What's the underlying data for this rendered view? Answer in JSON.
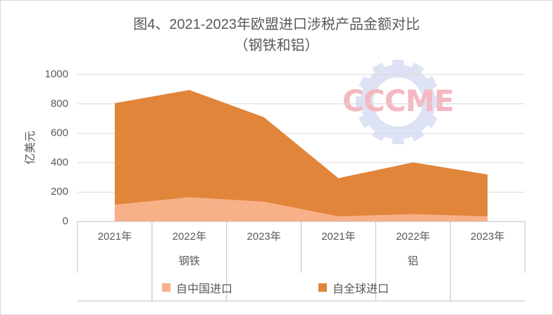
{
  "chart_data": {
    "type": "area",
    "title": "图4、2021-2023年欧盟进口涉税产品金额对比",
    "subtitle": "（钢铁和铝）",
    "ylabel": "亿美元",
    "xlabel": "",
    "ylim": [
      0,
      1000
    ],
    "yticks": [
      "0",
      "200",
      "400",
      "600",
      "800",
      "1000"
    ],
    "grid": true,
    "legend_position": "bottom",
    "groups": [
      {
        "name": "钢铁",
        "categories": [
          "2021年",
          "2022年",
          "2023年"
        ]
      },
      {
        "name": "铝",
        "categories": [
          "2021年",
          "2022年",
          "2023年"
        ]
      }
    ],
    "categories": [
      "2021年",
      "2022年",
      "2023年",
      "2021年",
      "2022年",
      "2023年"
    ],
    "series": [
      {
        "name": "自中国进口",
        "color": "#f8b088",
        "values": [
          115,
          165,
          135,
          35,
          50,
          35
        ]
      },
      {
        "name": "自全球进口",
        "color": "#e0853a",
        "values": [
          805,
          895,
          710,
          295,
          402,
          320
        ]
      }
    ]
  },
  "watermark": {
    "text": "CCCME",
    "text_color": "#f4b8c0",
    "gear_color": "#dde2f4"
  }
}
